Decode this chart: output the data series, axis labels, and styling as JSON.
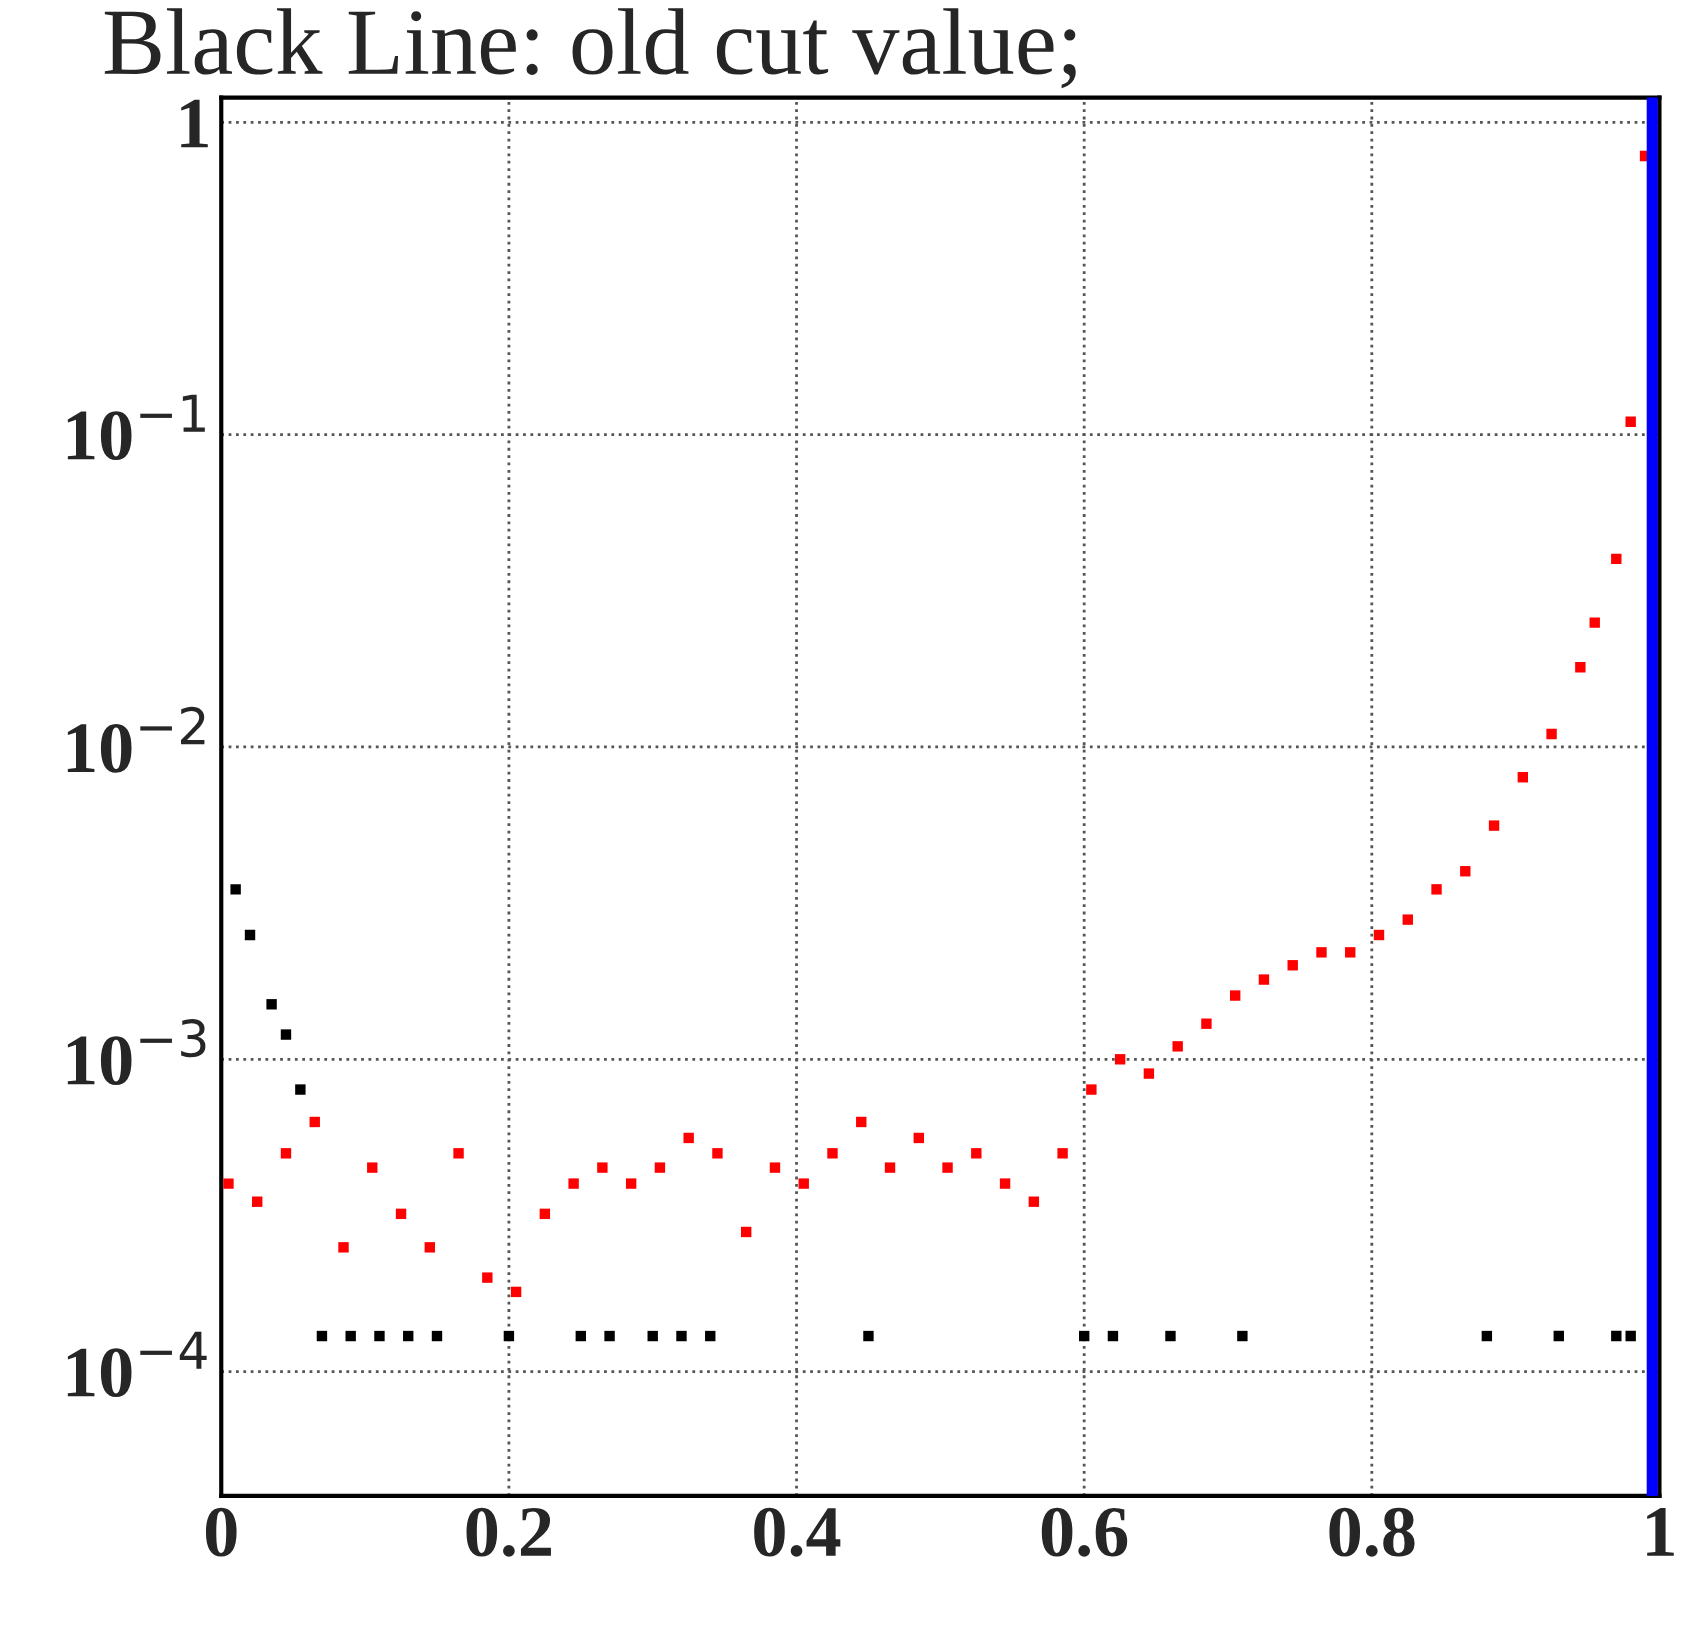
{
  "chart_data": {
    "type": "scatter",
    "title": "Black Line: old cut value;",
    "series": [
      {
        "color": "#ff0000",
        "x": [
          0.005,
          0.025,
          0.045,
          0.065,
          0.085,
          0.105,
          0.125,
          0.145,
          0.165,
          0.185,
          0.205,
          0.225,
          0.245,
          0.265,
          0.285,
          0.305,
          0.325,
          0.345,
          0.365,
          0.385,
          0.405,
          0.425,
          0.445,
          0.465,
          0.485,
          0.505,
          0.525,
          0.545,
          0.565,
          0.585,
          0.605,
          0.625,
          0.645,
          0.665,
          0.685,
          0.705,
          0.725,
          0.745,
          0.765,
          0.785,
          0.805,
          0.825,
          0.845,
          0.865,
          0.885,
          0.905,
          0.925,
          0.945,
          0.955,
          0.97,
          0.98,
          0.99
        ],
        "values": [
          0.0004,
          0.00035,
          0.0005,
          0.00063,
          0.00025,
          0.00045,
          0.00032,
          0.00025,
          0.0005,
          0.0002,
          0.00018,
          0.00032,
          0.0004,
          0.00045,
          0.0004,
          0.00045,
          0.00056,
          0.0005,
          0.00028,
          0.00045,
          0.0004,
          0.0005,
          0.00063,
          0.00045,
          0.00056,
          0.00045,
          0.0005,
          0.0004,
          0.00035,
          0.0005,
          0.0008,
          0.001,
          0.0009,
          0.0011,
          0.0013,
          0.0016,
          0.0018,
          0.002,
          0.0022,
          0.0022,
          0.0025,
          0.0028,
          0.0035,
          0.004,
          0.0056,
          0.008,
          0.011,
          0.018,
          0.025,
          0.04,
          0.11,
          0.78
        ]
      },
      {
        "color": "#000000",
        "x": [
          0.01,
          0.02,
          0.035,
          0.045,
          0.055,
          0.07,
          0.09,
          0.11,
          0.13,
          0.15,
          0.2,
          0.25,
          0.27,
          0.3,
          0.32,
          0.34,
          0.45,
          0.6,
          0.62,
          0.66,
          0.71,
          0.88,
          0.93,
          0.97,
          0.98
        ],
        "values": [
          0.0035,
          0.0025,
          0.0015,
          0.0012,
          0.0008,
          0.00013,
          0.00013,
          0.00013,
          0.00013,
          0.00013,
          0.00013,
          0.00013,
          0.00013,
          0.00013,
          0.00013,
          0.00013,
          0.00013,
          0.00013,
          0.00013,
          0.00013,
          0.00013,
          0.00013,
          0.00013,
          0.00013,
          0.00013
        ]
      }
    ],
    "log": "y",
    "xlim": [
      0,
      1
    ],
    "ylim": [
      4e-05,
      1.2
    ],
    "xticks": [
      0,
      {
        "value": 0.2,
        "label": "0.2"
      },
      {
        "value": 0.4,
        "label": "0.4"
      },
      {
        "value": 0.6,
        "label": "0.6"
      },
      {
        "value": 0.8,
        "label": "0.8"
      },
      1
    ],
    "yticks": [
      {
        "value": 0.0001,
        "label": "10$^{−4}$"
      },
      {
        "value": 0.001,
        "label": "10$^{−3}$"
      },
      {
        "value": 0.01,
        "label": "10$^{−2}$"
      },
      {
        "value": 0.1,
        "label": "10$^{−1}$"
      },
      1
    ],
    "ref_lines": [
      {
        "axis": "x",
        "value": 0.995,
        "color": "#0000ff"
      }
    ],
    "grid": true,
    "marker": "square"
  }
}
